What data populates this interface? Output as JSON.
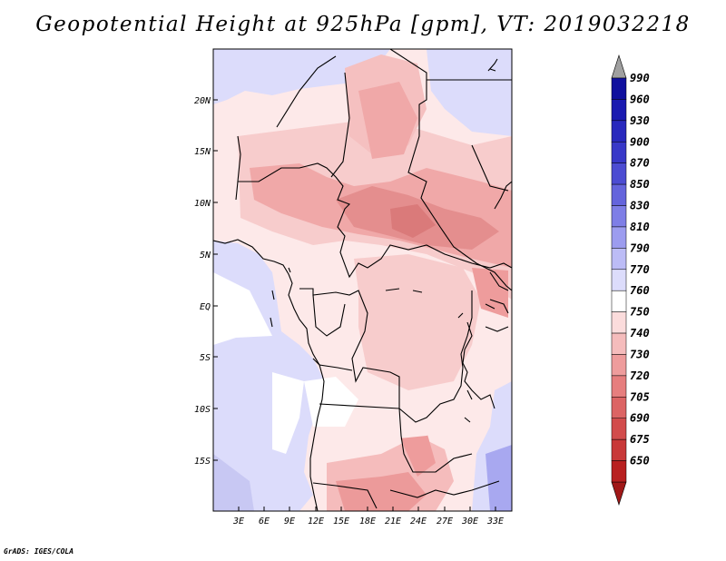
{
  "title": "Geopotential Height at 925hPa [gpm], VT: 2019032218",
  "credit": "GrADS: IGES/COLA",
  "map": {
    "region": "Central Africa",
    "lat_labels": [
      "20N",
      "15N",
      "10N",
      "5N",
      "EQ",
      "5S",
      "10S",
      "15S"
    ],
    "lon_labels": [
      "3E",
      "6E",
      "9E",
      "12E",
      "15E",
      "18E",
      "21E",
      "24E",
      "27E",
      "30E",
      "33E"
    ]
  },
  "colorbar": {
    "levels": [
      "990",
      "960",
      "930",
      "900",
      "870",
      "850",
      "830",
      "810",
      "790",
      "770",
      "760",
      "750",
      "740",
      "730",
      "720",
      "705",
      "690",
      "675",
      "650"
    ],
    "colors": [
      "#10109e",
      "#1a1ab0",
      "#2828bd",
      "#3838c8",
      "#4c4cd2",
      "#6464dc",
      "#7e7ee6",
      "#9c9cef",
      "#bcbcf6",
      "#dcdcfb",
      "#ffffff",
      "#fbdcdc",
      "#f5bcbc",
      "#ee9c9c",
      "#e67e7e",
      "#dc6464",
      "#d24c4c",
      "#c83838",
      "#b82020"
    ],
    "top_arrow_color": "#a0a0a0",
    "bottom_arrow_color": "#a01818"
  }
}
